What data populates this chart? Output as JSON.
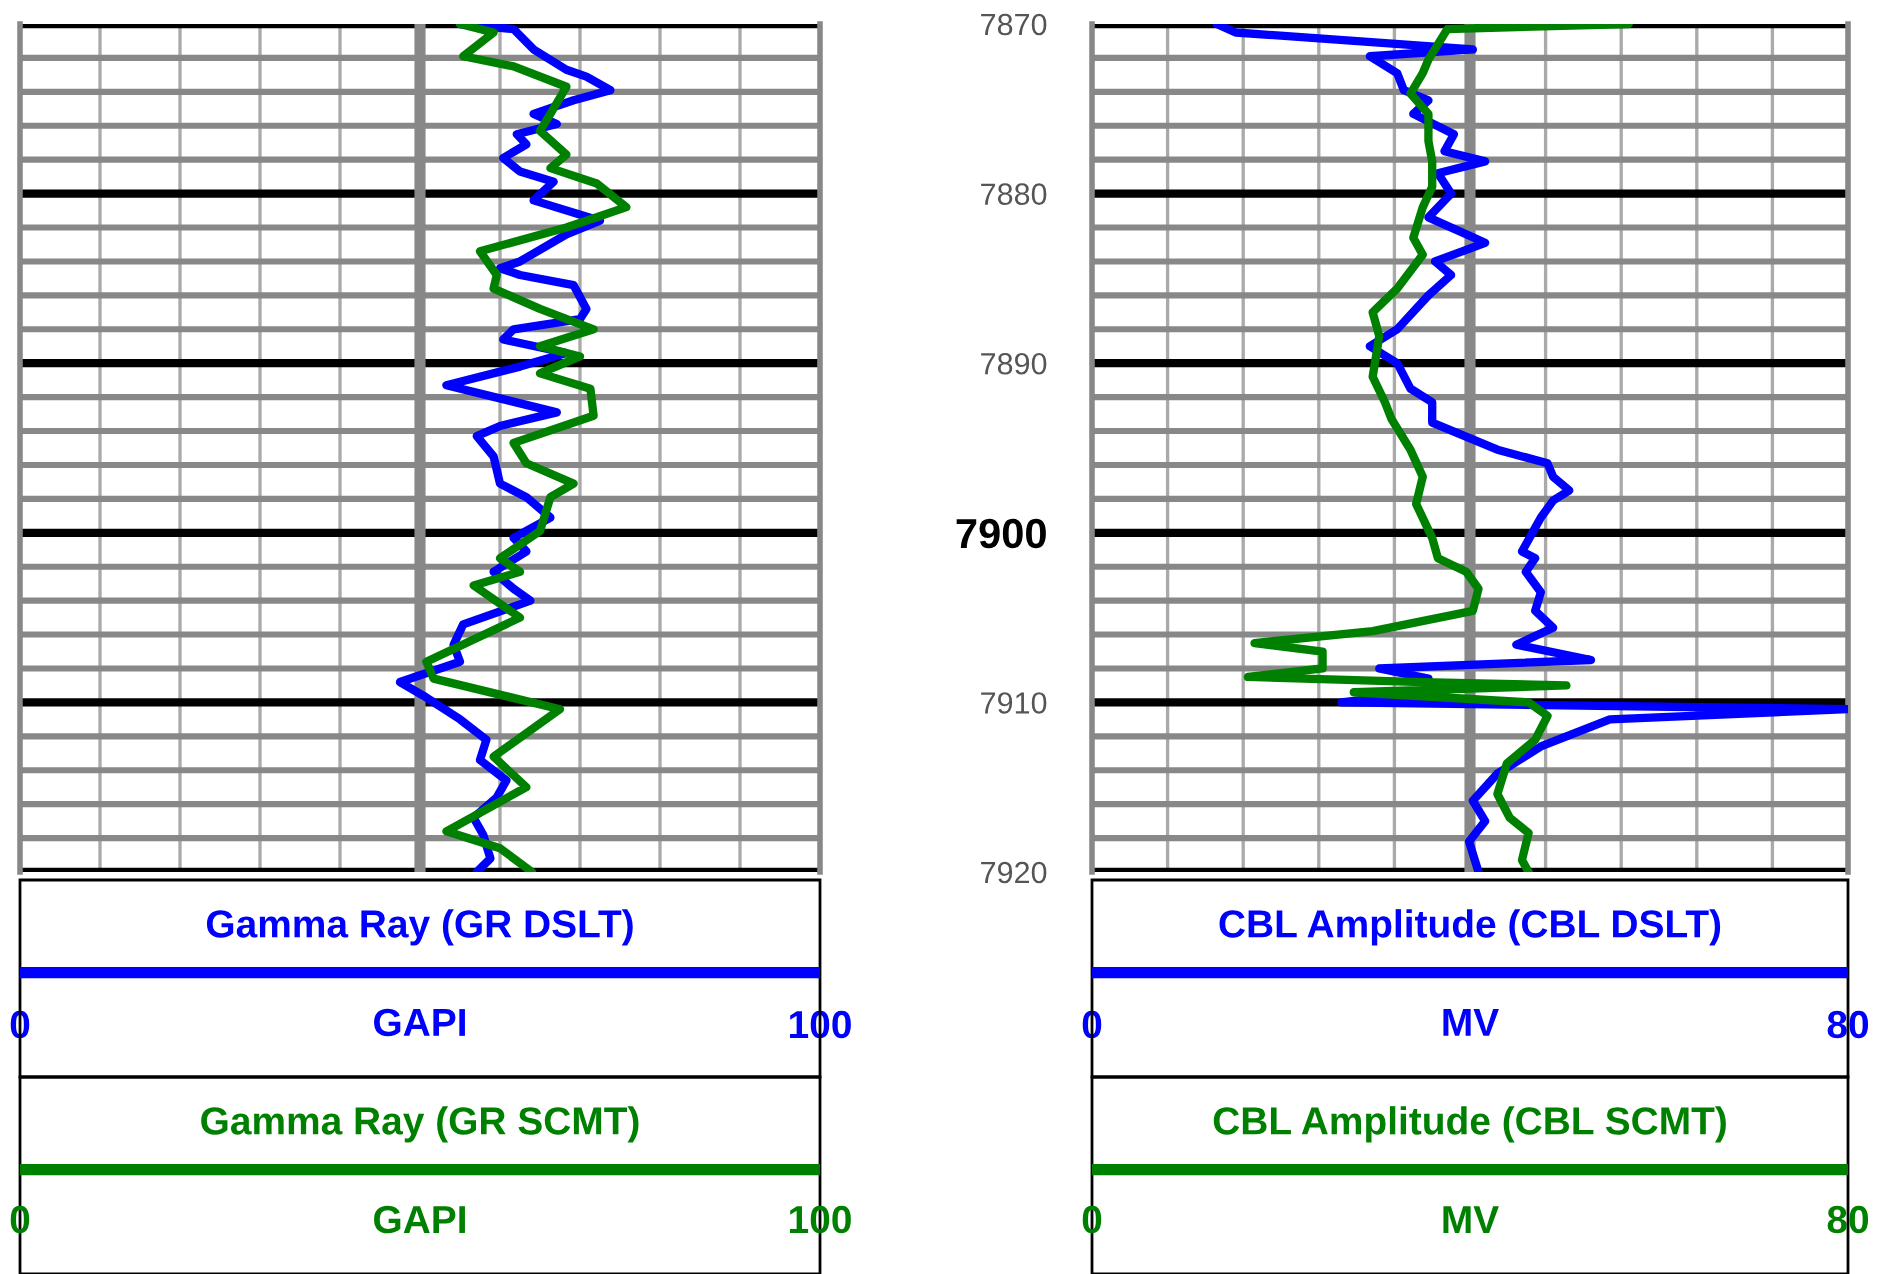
{
  "chart_data": [
    {
      "type": "line",
      "xlabel": "GAPI",
      "xlim": [
        0,
        100
      ],
      "x2label": "GAPI",
      "x2lim": [
        0,
        100
      ],
      "x2ticks": [
        0,
        100
      ],
      "ref_lines": [
        {
          "axis": "x",
          "value": 50,
          "color": "#888888"
        }
      ],
      "xticks": [
        0,
        {
          "value": 10,
          "label": null
        },
        {
          "value": 20,
          "label": null
        },
        {
          "value": 30,
          "label": null
        },
        {
          "value": 40,
          "label": null
        },
        {
          "value": 50,
          "label": null
        },
        {
          "value": 60,
          "label": null
        },
        {
          "value": 70,
          "label": null
        },
        {
          "value": 80,
          "label": null
        },
        {
          "value": 90,
          "label": null
        },
        100
      ],
      "ylim": [
        7920,
        7870
      ],
      "yticks": [
        7870,
        {
          "value": 7872,
          "label": null
        },
        {
          "value": 7874,
          "label": null
        },
        {
          "value": 7876,
          "label": null
        },
        {
          "value": 7878,
          "label": null
        },
        7880,
        {
          "value": 7882,
          "label": null
        },
        {
          "value": 7884,
          "label": null
        },
        {
          "value": 7886,
          "label": null
        },
        {
          "value": 7888,
          "label": null
        },
        7890,
        {
          "value": 7892,
          "label": null
        },
        {
          "value": 7894,
          "label": null
        },
        {
          "value": 7896,
          "label": null
        },
        {
          "value": 7898,
          "label": null
        },
        7900,
        {
          "value": 7902,
          "label": null
        },
        {
          "value": 7904,
          "label": null
        },
        {
          "value": 7906,
          "label": null
        },
        {
          "value": 7908,
          "label": null
        },
        7910,
        {
          "value": 7912,
          "label": null
        },
        {
          "value": 7914,
          "label": null
        },
        {
          "value": 7916,
          "label": null
        },
        {
          "value": 7918,
          "label": null
        },
        7920
      ],
      "tick_labels": "x",
      "grid": true,
      "legend": "bottom",
      "line_style": "solid",
      "series": [
        {
          "name": "Gamma Ray (GR DSLT)",
          "color": "#0000ff",
          "x": [
            55,
            61.7,
            64.2,
            68.3,
            70.8,
            73.8,
            69.2,
            64.2,
            67.1,
            62.1,
            63.3,
            60.4,
            62.5,
            66.7,
            64.2,
            72.5,
            68.3,
            62.5,
            60,
            62.5,
            69.2,
            70.8,
            70,
            61.7,
            60.4,
            68.3,
            62.5,
            53.3,
            67.1,
            60,
            57.1,
            59.2,
            60,
            63.3,
            66.3,
            61.7,
            63.3,
            59.2,
            61.7,
            63.8,
            55.4,
            54.2,
            55,
            47.5,
            50.4,
            55,
            58.3,
            57.5,
            60.8,
            59.6,
            56.7,
            57.9,
            58.8,
            57.1
          ],
          "values": [
            7870,
            7870.3,
            7871.5,
            7872.7,
            7873.1,
            7873.9,
            7874.5,
            7875.3,
            7875.9,
            7876.5,
            7877.1,
            7877.9,
            7878.7,
            7879.3,
            7880.4,
            7881.6,
            7882.4,
            7884,
            7884.4,
            7884.8,
            7885.4,
            7886.8,
            7887.4,
            7888,
            7888.6,
            7889.4,
            7890.2,
            7891.3,
            7892.9,
            7893.7,
            7894.3,
            7895.5,
            7897.1,
            7897.9,
            7899.1,
            7900.3,
            7901.1,
            7902.3,
            7903.3,
            7904,
            7905.4,
            7906.6,
            7907.6,
            7908.8,
            7909.6,
            7911,
            7912.2,
            7913.4,
            7914.6,
            7915.6,
            7916.8,
            7917.8,
            7919.2,
            7920
          ]
        },
        {
          "name": "Gamma Ray (GR SCMT)",
          "color": "#008000",
          "x": [
            55,
            59.2,
            55.4,
            61.7,
            68.3,
            66.3,
            65,
            68.3,
            66.3,
            72.1,
            75.8,
            68.3,
            57.5,
            59.6,
            59.2,
            65,
            71.7,
            65,
            70,
            65,
            71.3,
            71.7,
            61.7,
            63.3,
            69.2,
            66.3,
            65,
            60,
            62.5,
            56.7,
            62.5,
            50.8,
            51.7,
            67.5,
            59.2,
            63.3,
            53.3,
            60,
            64
          ],
          "values": [
            7870,
            7870.5,
            7871.9,
            7872.5,
            7873.7,
            7875.3,
            7876.3,
            7877.7,
            7878.5,
            7879.4,
            7880.8,
            7882,
            7883.4,
            7884.8,
            7885.6,
            7886.8,
            7888,
            7889,
            7889.6,
            7890.6,
            7891.5,
            7893.1,
            7894.7,
            7895.9,
            7897.1,
            7897.9,
            7899.9,
            7901.5,
            7902.3,
            7903.1,
            7905,
            7907.6,
            7908.6,
            7910.4,
            7913.2,
            7915,
            7917.6,
            7918.6,
            7920
          ]
        }
      ]
    },
    {
      "type": "line",
      "xlabel": "MV",
      "xlim": [
        0,
        80
      ],
      "x2label": "MV",
      "x2lim": [
        0,
        80
      ],
      "x2ticks": [
        0,
        80
      ],
      "ref_lines": [
        {
          "axis": "x",
          "value": 40,
          "color": "#888888"
        }
      ],
      "xticks": [
        0,
        {
          "value": 8,
          "label": null
        },
        {
          "value": 16,
          "label": null
        },
        {
          "value": 24,
          "label": null
        },
        {
          "value": 32,
          "label": null
        },
        {
          "value": 40,
          "label": null
        },
        {
          "value": 48,
          "label": null
        },
        {
          "value": 56,
          "label": null
        },
        {
          "value": 64,
          "label": null
        },
        {
          "value": 72,
          "label": null
        },
        80
      ],
      "ylim": [
        7920,
        7870
      ],
      "yticks": [
        7870,
        {
          "value": 7872,
          "label": null
        },
        {
          "value": 7874,
          "label": null
        },
        {
          "value": 7876,
          "label": null
        },
        {
          "value": 7878,
          "label": null
        },
        7880,
        {
          "value": 7882,
          "label": null
        },
        {
          "value": 7884,
          "label": null
        },
        {
          "value": 7886,
          "label": null
        },
        {
          "value": 7888,
          "label": null
        },
        7890,
        {
          "value": 7892,
          "label": null
        },
        {
          "value": 7894,
          "label": null
        },
        {
          "value": 7896,
          "label": null
        },
        {
          "value": 7898,
          "label": null
        },
        7900,
        {
          "value": 7902,
          "label": null
        },
        {
          "value": 7904,
          "label": null
        },
        {
          "value": 7906,
          "label": null
        },
        {
          "value": 7908,
          "label": null
        },
        7910,
        {
          "value": 7912,
          "label": null
        },
        {
          "value": 7914,
          "label": null
        },
        {
          "value": 7916,
          "label": null
        },
        {
          "value": 7918,
          "label": null
        },
        7920
      ],
      "grid": true,
      "legend": "bottom",
      "line_style": "solid",
      "series": [
        {
          "name": "CBL Amplitude (CBL DSLT)",
          "color": "#0000ff",
          "x": [
            13.2,
            15.2,
            40.3,
            29.4,
            32.3,
            33,
            35.6,
            34,
            38.3,
            37.3,
            41.6,
            36.6,
            38,
            35.6,
            41.6,
            36.3,
            38,
            35.6,
            32.3,
            29.4,
            32.3,
            33.7,
            36,
            36,
            42.9,
            48.2,
            48.8,
            50.5,
            48.8,
            47.5,
            45.5,
            46.9,
            45.9,
            47.5,
            46.9,
            48.8,
            44.9,
            52.8,
            30.4,
            35.6,
            35.6,
            26.4,
            80,
            54.8,
            47.5,
            42.9,
            40.3,
            41.6,
            39.9,
            40.9
          ],
          "values": [
            7870,
            7870.5,
            7871.5,
            7871.9,
            7872.9,
            7873.9,
            7874.5,
            7875.3,
            7876.5,
            7877.5,
            7878.1,
            7878.8,
            7880,
            7881.4,
            7882.9,
            7884,
            7884.8,
            7886,
            7888,
            7889,
            7890,
            7891.5,
            7892.3,
            7893.5,
            7895.1,
            7895.9,
            7896.7,
            7897.5,
            7898.1,
            7899.1,
            7901.1,
            7901.5,
            7902.3,
            7903.5,
            7904.6,
            7905.6,
            7906.6,
            7907.5,
            7908,
            7908.6,
            7909.4,
            7910,
            7910.4,
            7911,
            7912.6,
            7914.2,
            7915.8,
            7917,
            7918.2,
            7920
          ]
        },
        {
          "name": "CBL Amplitude (CBL SCMT)",
          "color": "#008000",
          "x": [
            56.8,
            37.6,
            35.6,
            35,
            33.7,
            35.6,
            35.6,
            36,
            36,
            35,
            34,
            35,
            32.3,
            29.7,
            30.4,
            29.7,
            31,
            31.7,
            33.7,
            35,
            34.3,
            36,
            36.6,
            39.6,
            40.9,
            40.3,
            29.7,
            17.2,
            24.4,
            24.4,
            16.5,
            35,
            50.2,
            27.7,
            46.2,
            48.2,
            46.9,
            43.9,
            42.9,
            44.2,
            46.2,
            45.5,
            46.2
          ],
          "values": [
            7870,
            7870.3,
            7872.1,
            7872.9,
            7874.1,
            7875.3,
            7876.9,
            7878.1,
            7879.6,
            7880.8,
            7882.6,
            7883.6,
            7885.6,
            7887,
            7888.4,
            7890.8,
            7892.3,
            7893.3,
            7895.1,
            7896.7,
            7898.3,
            7900.3,
            7901.5,
            7902.3,
            7903.3,
            7904.6,
            7905.8,
            7906.5,
            7907,
            7908,
            7908.5,
            7908.8,
            7909,
            7909.4,
            7910,
            7910.8,
            7912.2,
            7913.6,
            7915.4,
            7916.8,
            7917.7,
            7919.3,
            7920
          ]
        }
      ]
    }
  ]
}
